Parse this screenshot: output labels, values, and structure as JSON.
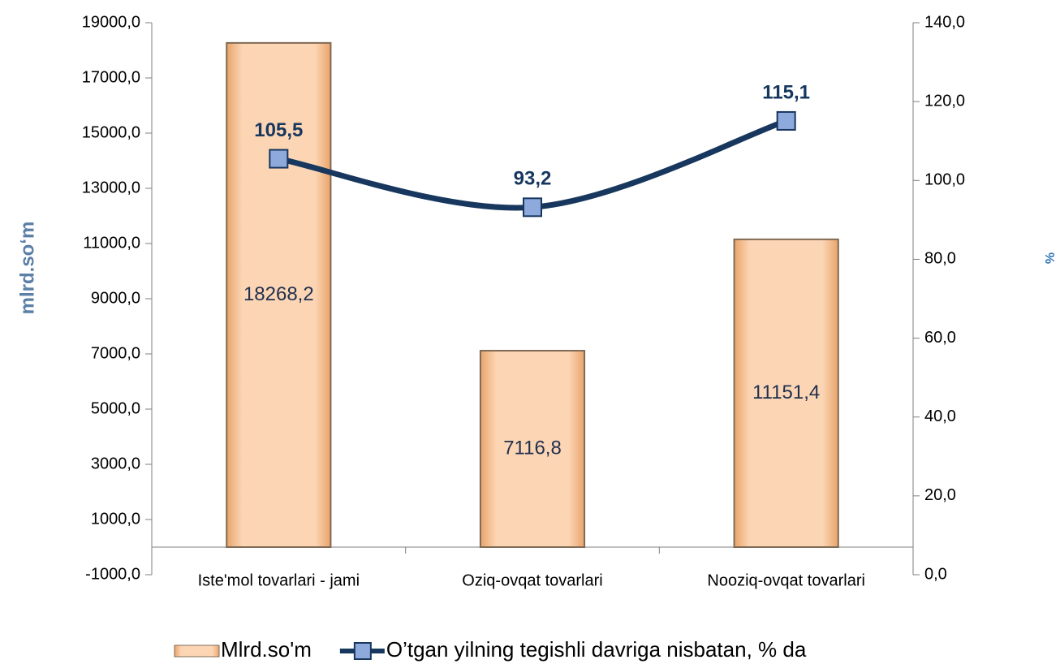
{
  "chart_data": {
    "type": "bar",
    "categories": [
      "Iste'mol tovarlari - jami",
      "Oziq-ovqat tovarlari",
      "Nooziq-ovqat tovarlari"
    ],
    "series": [
      {
        "name": "Mlrd.so'm",
        "type": "bar",
        "color": "#fac090",
        "values": [
          18268.2,
          7116.8,
          11151.4
        ],
        "value_labels": [
          "18268,2",
          "7116,8",
          "11151,4"
        ]
      },
      {
        "name": "O’tgan yilning tegishli davriga nisbatan, % da",
        "type": "line",
        "axis": "y2",
        "color": "#17375e",
        "marker_color": "#8ea9db",
        "values": [
          105.5,
          93.2,
          115.1
        ],
        "value_labels": [
          "105,5",
          "93,2",
          "115,1"
        ]
      }
    ],
    "y_label": "mlrd.so‘m",
    "y2_label": "%",
    "ylim": [
      -1000,
      19000
    ],
    "yticks": [
      {
        "value": -1000,
        "label": "-1000,0"
      },
      {
        "value": 1000,
        "label": "1000,0"
      },
      {
        "value": 3000,
        "label": "3000,0"
      },
      {
        "value": 5000,
        "label": "5000,0"
      },
      {
        "value": 7000,
        "label": "7000,0"
      },
      {
        "value": 9000,
        "label": "9000,0"
      },
      {
        "value": 11000,
        "label": "11000,0"
      },
      {
        "value": 13000,
        "label": "13000,0"
      },
      {
        "value": 15000,
        "label": "15000,0"
      },
      {
        "value": 17000,
        "label": "17000,0"
      },
      {
        "value": 19000,
        "label": "19000,0"
      }
    ],
    "y2lim": [
      0,
      140
    ],
    "y2ticks": [
      {
        "value": 0,
        "label": "0,0"
      },
      {
        "value": 20,
        "label": "20,0"
      },
      {
        "value": 40,
        "label": "40,0"
      },
      {
        "value": 60,
        "label": "60,0"
      },
      {
        "value": 80,
        "label": "80,0"
      },
      {
        "value": 100,
        "label": "100,0"
      },
      {
        "value": 120,
        "label": "120,0"
      },
      {
        "value": 140,
        "label": "140,0"
      }
    ],
    "legend": "bottom",
    "grid": false
  }
}
